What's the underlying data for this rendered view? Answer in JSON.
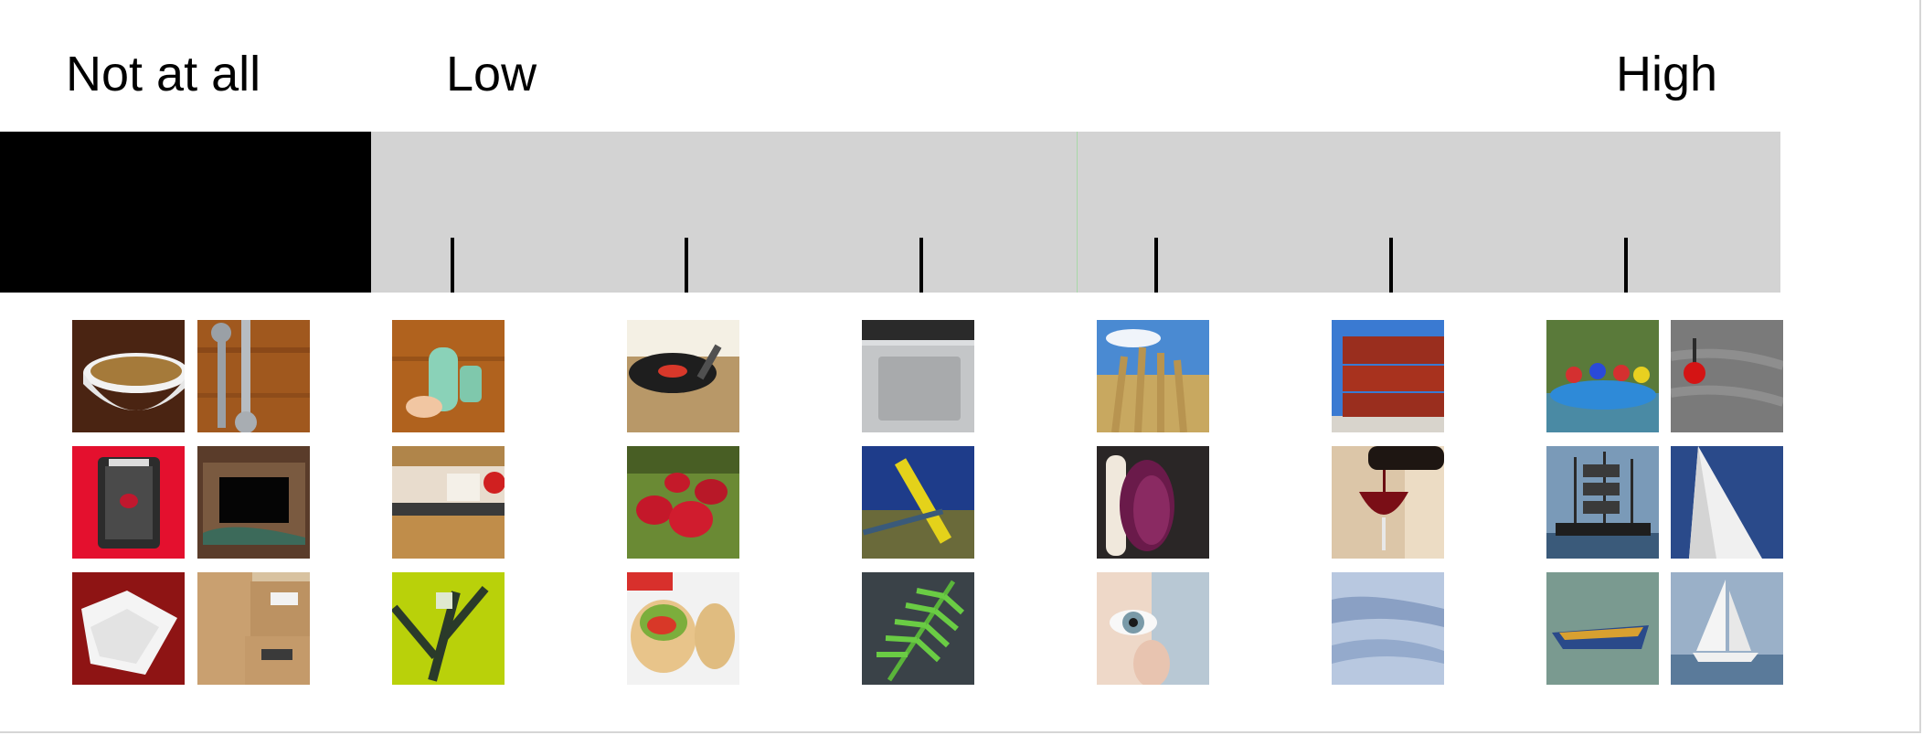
{
  "scale": {
    "labels": {
      "not_at_all": "Not at all",
      "low": "Low",
      "high": "High"
    },
    "tick_count": 6
  },
  "images": {
    "not_at_all": [
      "bowl-of-soup",
      "wrenches",
      "camera-bag",
      "picture-frame",
      "handkerchief",
      "cardboard-boxes"
    ],
    "level_1": [
      "plastic-containers",
      "kitchen",
      "green-markers"
    ],
    "level_2": [
      "turntable",
      "football-helmets",
      "burrito-wraps"
    ],
    "level_3": [
      "laptop-trackpad",
      "playground-slide",
      "fern"
    ],
    "level_4": [
      "wheat-field",
      "feather-boa",
      "eye-contact-lens"
    ],
    "level_5": [
      "shipping-containers",
      "wine-pour",
      "snow-dunes"
    ],
    "high": [
      "river-rafting",
      "buoy-on-sand",
      "tall-ship",
      "sail-closeup",
      "rowboat",
      "sailboat"
    ]
  }
}
